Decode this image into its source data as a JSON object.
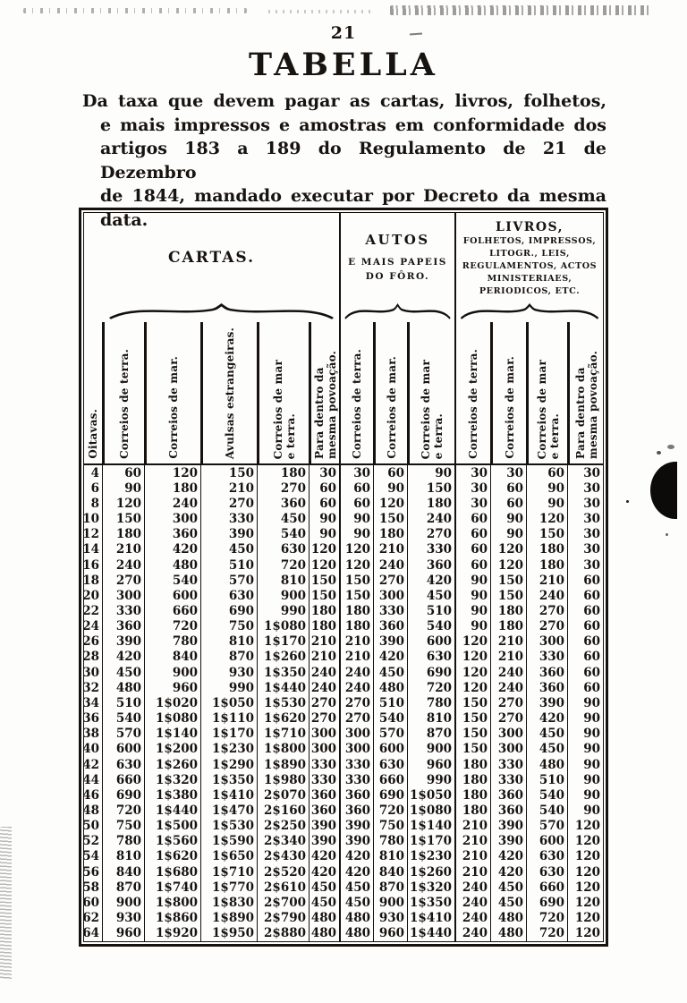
{
  "page": {
    "number": "21",
    "title": "TABELLA",
    "subtitle_lines": [
      "Da taxa que devem pagar as cartas, livros, folhetos,",
      "e mais impressos e amostras em conformidade dos",
      "artigos 183 a 189 do Regulamento de 21 de Dezembro",
      "de 1844, mandado executar por Decreto da mesma",
      "data."
    ]
  },
  "table": {
    "groups": [
      {
        "name": "cartas",
        "title_lines": [
          "CARTAS."
        ],
        "columns": [
          "Oitavas.",
          "Correios de terra.",
          "Correios de mar.",
          "Avulsas estrangeiras.",
          "Correios de mar\ne terra.",
          "Para dentro da\nmesma povoação."
        ]
      },
      {
        "name": "autos",
        "title_lines": [
          "AUTOS",
          "E MAIS PAPEIS",
          "DO FÔRO."
        ],
        "columns": [
          "Correios de terra.",
          "Correios de mar.",
          "Correios de mar\ne terra."
        ]
      },
      {
        "name": "livros",
        "title_lines": [
          "LIVROS,",
          "FOLHETOS, IMPRESSOS,",
          "LITOGR., LEIS,",
          "REGULAMENTOS, ACTOS",
          "MINISTERIAES,",
          "PERIODICOS, ETC."
        ],
        "columns": [
          "Correios de terra.",
          "Correios de mar.",
          "Correios de mar\ne terra.",
          "Para dentro da\nmesma povoação."
        ]
      }
    ],
    "rows": [
      [
        "4",
        "60",
        "120",
        "150",
        "180",
        "30",
        "30",
        "60",
        "90",
        "30",
        "30",
        "60",
        "30"
      ],
      [
        "6",
        "90",
        "180",
        "210",
        "270",
        "60",
        "60",
        "90",
        "150",
        "30",
        "60",
        "90",
        "30"
      ],
      [
        "8",
        "120",
        "240",
        "270",
        "360",
        "60",
        "60",
        "120",
        "180",
        "30",
        "60",
        "90",
        "30"
      ],
      [
        "10",
        "150",
        "300",
        "330",
        "450",
        "90",
        "90",
        "150",
        "240",
        "60",
        "90",
        "120",
        "30"
      ],
      [
        "12",
        "180",
        "360",
        "390",
        "540",
        "90",
        "90",
        "180",
        "270",
        "60",
        "90",
        "150",
        "30"
      ],
      [
        "14",
        "210",
        "420",
        "450",
        "630",
        "120",
        "120",
        "210",
        "330",
        "60",
        "120",
        "180",
        "30"
      ],
      [
        "16",
        "240",
        "480",
        "510",
        "720",
        "120",
        "120",
        "240",
        "360",
        "60",
        "120",
        "180",
        "30"
      ],
      [
        "18",
        "270",
        "540",
        "570",
        "810",
        "150",
        "150",
        "270",
        "420",
        "90",
        "150",
        "210",
        "60"
      ],
      [
        "20",
        "300",
        "600",
        "630",
        "900",
        "150",
        "150",
        "300",
        "450",
        "90",
        "150",
        "240",
        "60"
      ],
      [
        "22",
        "330",
        "660",
        "690",
        "990",
        "180",
        "180",
        "330",
        "510",
        "90",
        "180",
        "270",
        "60"
      ],
      [
        "24",
        "360",
        "720",
        "750",
        "1$080",
        "180",
        "180",
        "360",
        "540",
        "90",
        "180",
        "270",
        "60"
      ],
      [
        "26",
        "390",
        "780",
        "810",
        "1$170",
        "210",
        "210",
        "390",
        "600",
        "120",
        "210",
        "300",
        "60"
      ],
      [
        "28",
        "420",
        "840",
        "870",
        "1$260",
        "210",
        "210",
        "420",
        "630",
        "120",
        "210",
        "330",
        "60"
      ],
      [
        "30",
        "450",
        "900",
        "930",
        "1$350",
        "240",
        "240",
        "450",
        "690",
        "120",
        "240",
        "360",
        "60"
      ],
      [
        "32",
        "480",
        "960",
        "990",
        "1$440",
        "240",
        "240",
        "480",
        "720",
        "120",
        "240",
        "360",
        "60"
      ],
      [
        "34",
        "510",
        "1$020",
        "1$050",
        "1$530",
        "270",
        "270",
        "510",
        "780",
        "150",
        "270",
        "390",
        "90"
      ],
      [
        "36",
        "540",
        "1$080",
        "1$110",
        "1$620",
        "270",
        "270",
        "540",
        "810",
        "150",
        "270",
        "420",
        "90"
      ],
      [
        "38",
        "570",
        "1$140",
        "1$170",
        "1$710",
        "300",
        "300",
        "570",
        "870",
        "150",
        "300",
        "450",
        "90"
      ],
      [
        "40",
        "600",
        "1$200",
        "1$230",
        "1$800",
        "300",
        "300",
        "600",
        "900",
        "150",
        "300",
        "450",
        "90"
      ],
      [
        "42",
        "630",
        "1$260",
        "1$290",
        "1$890",
        "330",
        "330",
        "630",
        "960",
        "180",
        "330",
        "480",
        "90"
      ],
      [
        "44",
        "660",
        "1$320",
        "1$350",
        "1$980",
        "330",
        "330",
        "660",
        "990",
        "180",
        "330",
        "510",
        "90"
      ],
      [
        "46",
        "690",
        "1$380",
        "1$410",
        "2$070",
        "360",
        "360",
        "690",
        "1$050",
        "180",
        "360",
        "540",
        "90"
      ],
      [
        "48",
        "720",
        "1$440",
        "1$470",
        "2$160",
        "360",
        "360",
        "720",
        "1$080",
        "180",
        "360",
        "540",
        "90"
      ],
      [
        "50",
        "750",
        "1$500",
        "1$530",
        "2$250",
        "390",
        "390",
        "750",
        "1$140",
        "210",
        "390",
        "570",
        "120"
      ],
      [
        "52",
        "780",
        "1$560",
        "1$590",
        "2$340",
        "390",
        "390",
        "780",
        "1$170",
        "210",
        "390",
        "600",
        "120"
      ],
      [
        "54",
        "810",
        "1$620",
        "1$650",
        "2$430",
        "420",
        "420",
        "810",
        "1$230",
        "210",
        "420",
        "630",
        "120"
      ],
      [
        "56",
        "840",
        "1$680",
        "1$710",
        "2$520",
        "420",
        "420",
        "840",
        "1$260",
        "210",
        "420",
        "630",
        "120"
      ],
      [
        "58",
        "870",
        "1$740",
        "1$770",
        "2$610",
        "450",
        "450",
        "870",
        "1$320",
        "240",
        "450",
        "660",
        "120"
      ],
      [
        "60",
        "900",
        "1$800",
        "1$830",
        "2$700",
        "450",
        "450",
        "900",
        "1$350",
        "240",
        "450",
        "690",
        "120"
      ],
      [
        "62",
        "930",
        "1$860",
        "1$890",
        "2$790",
        "480",
        "480",
        "930",
        "1$410",
        "240",
        "480",
        "720",
        "120"
      ],
      [
        "64",
        "960",
        "1$920",
        "1$950",
        "2$880",
        "480",
        "480",
        "960",
        "1$440",
        "240",
        "480",
        "720",
        "120"
      ]
    ]
  }
}
